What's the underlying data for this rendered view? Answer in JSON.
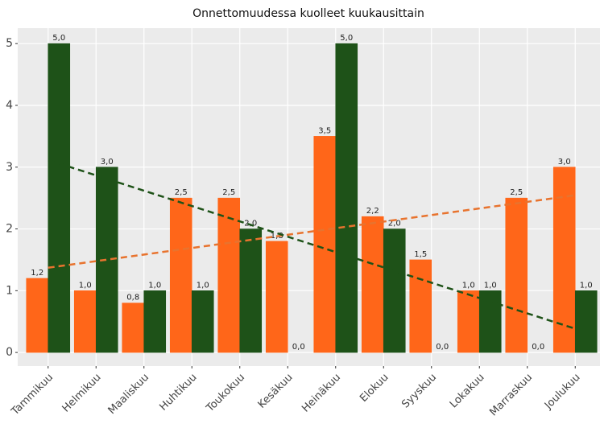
{
  "chart_data": {
    "type": "bar",
    "title": "Onnettomuudessa kuolleet kuukausittain",
    "categories": [
      "Tammikuu",
      "Helmikuu",
      "Maaliskuu",
      "Huhtikuu",
      "Toukokuu",
      "Kesäkuu",
      "Heinäkuu",
      "Elokuu",
      "Syyskuu",
      "Lokakuu",
      "Marraskuu",
      "Joulukuu"
    ],
    "series": [
      {
        "color": "#ff6619",
        "trend_color": "#e8732e",
        "values": [
          1.2,
          1,
          0.8,
          2.5,
          2.5,
          1.8,
          3.5,
          2.2,
          1.5,
          1,
          2.5,
          3
        ],
        "value_labels": [
          "1,2",
          "1,0",
          "0,8",
          "2,5",
          "2,5",
          "1,8",
          "3,5",
          "2,2",
          "1,5",
          "1,0",
          "2,5",
          "3,0"
        ]
      },
      {
        "color": "#1e5218",
        "trend_color": "#1e5218",
        "values": [
          5,
          3,
          1,
          1,
          2,
          0,
          5,
          2,
          0,
          1,
          0,
          1
        ],
        "value_labels": [
          "5,0",
          "3,0",
          "1,0",
          "1,0",
          "2,0",
          "0,0",
          "5,0",
          "2,0",
          "0,0",
          "1,0",
          "0,0",
          "1,0"
        ]
      }
    ],
    "ylim": [
      -0.22,
      5.25
    ],
    "yticks": [
      0,
      1,
      2,
      3,
      4,
      5
    ],
    "grid": true,
    "trend_lines": true
  }
}
